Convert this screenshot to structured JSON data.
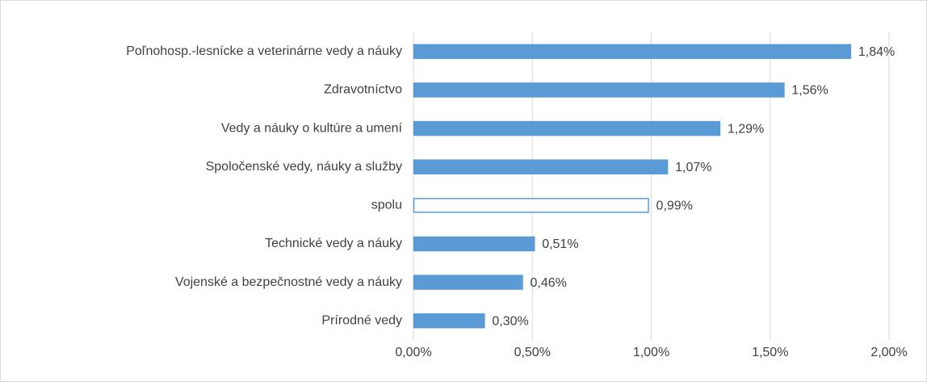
{
  "chart_data": {
    "type": "bar",
    "orientation": "horizontal",
    "categories": [
      "Poľnohosp.-lesnícke a veterinárne vedy a náuky",
      "Zdravotníctvo",
      "Vedy a náuky o kultúre a umení",
      "Spoločenské vedy, náuky a služby",
      "spolu",
      "Technické vedy a náuky",
      "Vojenské a bezpečnostné vedy a náuky",
      "Prírodné vedy"
    ],
    "values": [
      1.84,
      1.56,
      1.29,
      1.07,
      0.99,
      0.51,
      0.46,
      0.3
    ],
    "value_labels": [
      "1,84%",
      "1,56%",
      "1,29%",
      "1,07%",
      "0,99%",
      "0,51%",
      "0,46%",
      "0,30%"
    ],
    "color": "#5b9bd5",
    "bar_fill": [
      "#5b9bd5",
      "#5b9bd5",
      "#5b9bd5",
      "#5b9bd5",
      "#ffffff",
      "#5b9bd5",
      "#5b9bd5",
      "#5b9bd5"
    ],
    "xlim": [
      0,
      2
    ],
    "xticks": [
      {
        "value": 0,
        "label": "0,00%"
      },
      {
        "value": 0.5,
        "label": "0,50%"
      },
      {
        "value": 1,
        "label": "1,00%"
      },
      {
        "value": 1.5,
        "label": "1,50%"
      },
      {
        "value": 2,
        "label": "2,00%"
      }
    ],
    "grid": true
  }
}
